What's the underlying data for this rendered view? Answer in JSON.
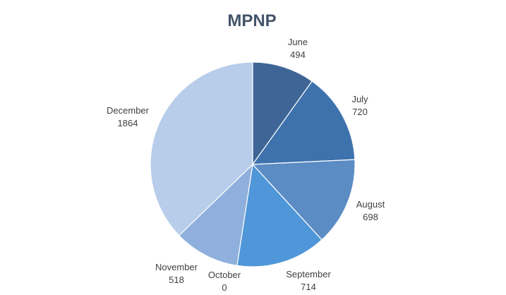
{
  "chart_data": {
    "type": "pie",
    "title": "MPNP",
    "categories": [
      "June",
      "July",
      "August",
      "September",
      "October",
      "November",
      "December"
    ],
    "values": [
      494,
      720,
      698,
      714,
      0,
      518,
      1864
    ],
    "colors": [
      "#3e6596",
      "#3d72ad",
      "#5b8cc4",
      "#4f97d8",
      "#5aa2dd",
      "#8fb0dc",
      "#b7cdea"
    ],
    "start_angle": "12 o'clock",
    "direction": "clockwise",
    "legend": "none",
    "data_labels": "outside, category name and value"
  }
}
